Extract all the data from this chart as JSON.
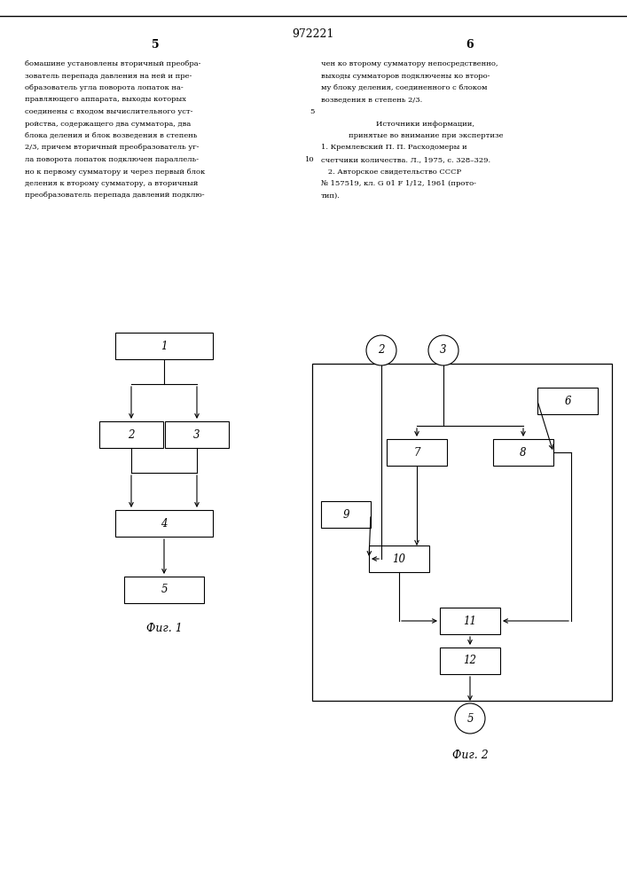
{
  "title": "972221",
  "fig1_label": "Фиг. 1",
  "fig2_label": "Фиг. 2",
  "bg_color": "#ffffff"
}
